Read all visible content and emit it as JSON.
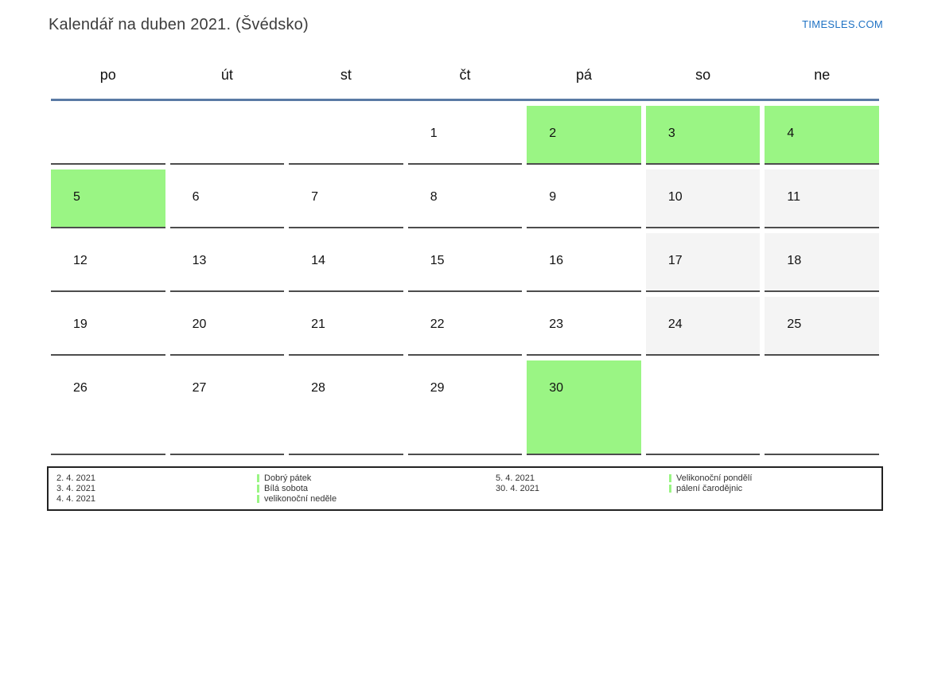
{
  "header": {
    "title": "Kalendář na duben 2021. (Švédsko)",
    "site_link": "TIMESLES.COM"
  },
  "calendar": {
    "weekdays": [
      "po",
      "út",
      "st",
      "čt",
      "pá",
      "so",
      "ne"
    ],
    "weeks": [
      [
        {
          "day": "",
          "type": "empty"
        },
        {
          "day": "",
          "type": "empty"
        },
        {
          "day": "",
          "type": "empty"
        },
        {
          "day": "1",
          "type": "day"
        },
        {
          "day": "2",
          "type": "holiday"
        },
        {
          "day": "3",
          "type": "holiday"
        },
        {
          "day": "4",
          "type": "holiday"
        }
      ],
      [
        {
          "day": "5",
          "type": "holiday"
        },
        {
          "day": "6",
          "type": "day"
        },
        {
          "day": "7",
          "type": "day"
        },
        {
          "day": "8",
          "type": "day"
        },
        {
          "day": "9",
          "type": "day"
        },
        {
          "day": "10",
          "type": "weekend"
        },
        {
          "day": "11",
          "type": "weekend"
        }
      ],
      [
        {
          "day": "12",
          "type": "day"
        },
        {
          "day": "13",
          "type": "day"
        },
        {
          "day": "14",
          "type": "day"
        },
        {
          "day": "15",
          "type": "day"
        },
        {
          "day": "16",
          "type": "day"
        },
        {
          "day": "17",
          "type": "weekend"
        },
        {
          "day": "18",
          "type": "weekend"
        }
      ],
      [
        {
          "day": "19",
          "type": "day"
        },
        {
          "day": "20",
          "type": "day"
        },
        {
          "day": "21",
          "type": "day"
        },
        {
          "day": "22",
          "type": "day"
        },
        {
          "day": "23",
          "type": "day"
        },
        {
          "day": "24",
          "type": "weekend"
        },
        {
          "day": "25",
          "type": "weekend"
        }
      ],
      [
        {
          "day": "26",
          "type": "day"
        },
        {
          "day": "27",
          "type": "day"
        },
        {
          "day": "28",
          "type": "day"
        },
        {
          "day": "29",
          "type": "day"
        },
        {
          "day": "30",
          "type": "holiday"
        },
        {
          "day": "",
          "type": "empty"
        },
        {
          "day": "",
          "type": "empty"
        }
      ]
    ]
  },
  "legend": {
    "groups": [
      {
        "entries": [
          {
            "date": "2. 4. 2021",
            "label": "Dobrý pátek"
          },
          {
            "date": "3. 4. 2021",
            "label": "Bílá sobota"
          },
          {
            "date": "4. 4. 2021",
            "label": "velikonoční neděle"
          }
        ]
      },
      {
        "entries": [
          {
            "date": "5. 4. 2021",
            "label": "Velikonoční pondělí"
          },
          {
            "date": "30. 4. 2021",
            "label": "pálení čarodějnic"
          }
        ]
      }
    ]
  },
  "colors": {
    "holiday_green": "#9af584",
    "weekend_gray": "#f4f4f4",
    "header_line_blue": "#5a7aa5",
    "cell_border_gray": "#4d4d4d",
    "link_blue": "#1f72c4"
  }
}
